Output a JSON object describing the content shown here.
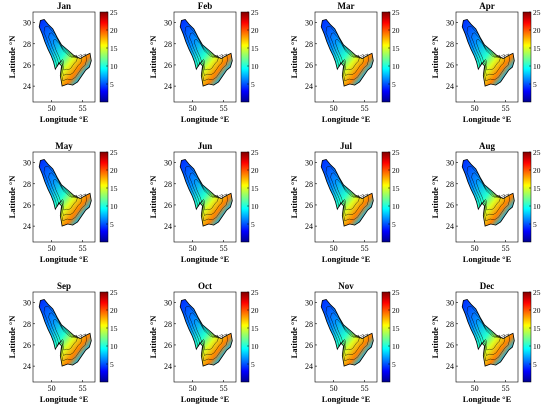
{
  "chart_data": {
    "type": "heatmap",
    "panel_titles": [
      "Jan",
      "Feb",
      "Mar",
      "Apr",
      "May",
      "Jun",
      "Jul",
      "Aug",
      "Sep",
      "Oct",
      "Nov",
      "Dec"
    ],
    "xlabel": "Longitude °E",
    "ylabel": "Latitude °N",
    "xlim": [
      47,
      57
    ],
    "ylim": [
      22.5,
      31
    ],
    "x_ticks": [
      50,
      55
    ],
    "x_tick_labels": [
      "50",
      "55"
    ],
    "y_ticks": [
      24,
      26,
      28,
      30
    ],
    "y_tick_labels": [
      "24",
      "26",
      "28",
      "30"
    ],
    "colorbar": {
      "range": [
        0,
        25
      ],
      "ticks": [
        5,
        10,
        15,
        20,
        25
      ],
      "tick_labels": [
        "5",
        "10",
        "15",
        "20",
        "25"
      ],
      "colormap": "jet"
    },
    "grid": false
  }
}
